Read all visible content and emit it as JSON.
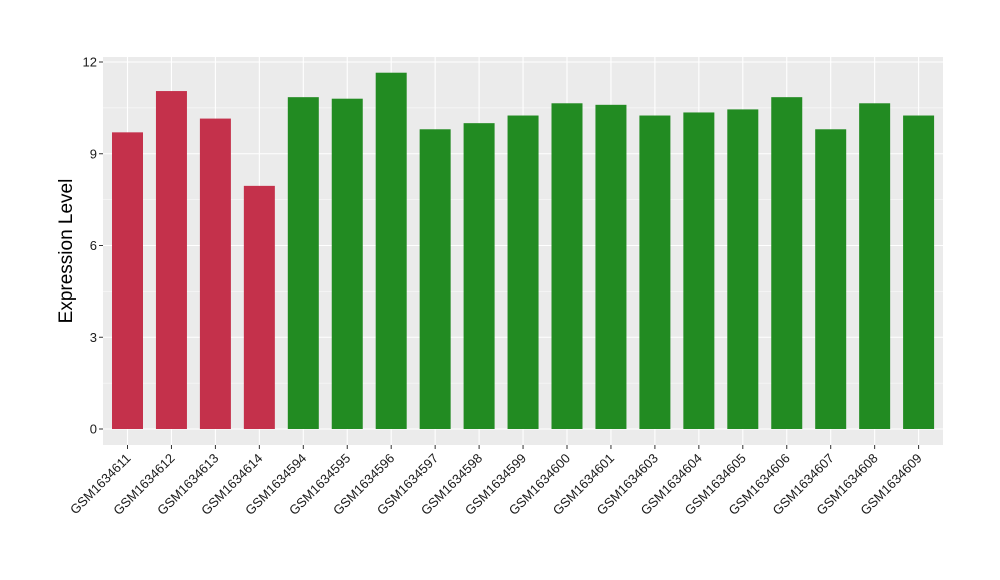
{
  "chart_data": {
    "type": "bar",
    "title": "",
    "xlabel": "",
    "ylabel": "Expression Level",
    "ylim": [
      0,
      12
    ],
    "yticks": [
      0,
      3,
      6,
      9,
      12
    ],
    "grid": true,
    "legend": "none",
    "categories": [
      "GSM1634611",
      "GSM1634612",
      "GSM1634613",
      "GSM1634614",
      "GSM1634594",
      "GSM1634595",
      "GSM1634596",
      "GSM1634597",
      "GSM1634598",
      "GSM1634599",
      "GSM1634600",
      "GSM1634601",
      "GSM1634603",
      "GSM1634604",
      "GSM1634605",
      "GSM1634606",
      "GSM1634607",
      "GSM1634608",
      "GSM1634609"
    ],
    "values": [
      9.7,
      11.05,
      10.15,
      7.95,
      10.85,
      10.8,
      11.65,
      9.8,
      10.0,
      10.25,
      10.65,
      10.6,
      10.25,
      10.35,
      10.45,
      10.85,
      9.8,
      10.65,
      10.25
    ],
    "bar_colors": [
      "#c4314b",
      "#c4314b",
      "#c4314b",
      "#c4314b",
      "#228b22",
      "#228b22",
      "#228b22",
      "#228b22",
      "#228b22",
      "#228b22",
      "#228b22",
      "#228b22",
      "#228b22",
      "#228b22",
      "#228b22",
      "#228b22",
      "#228b22",
      "#228b22",
      "#228b22"
    ],
    "panel_background": "#ebebeb"
  }
}
